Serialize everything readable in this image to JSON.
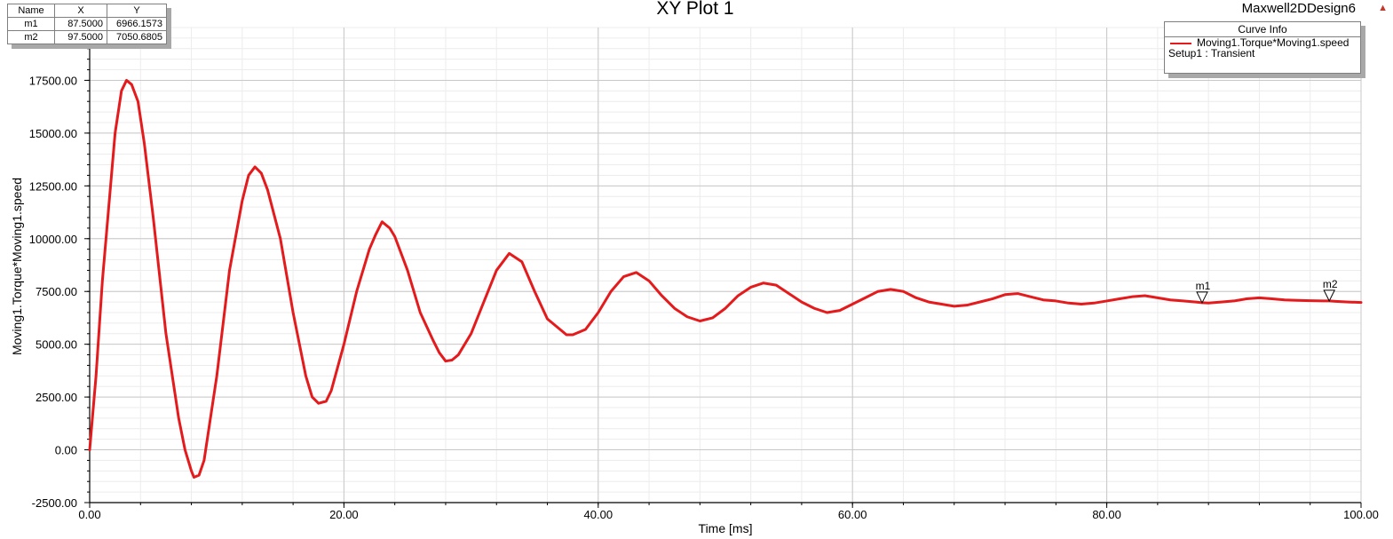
{
  "window": {
    "title": "XY Plot 1",
    "design_name": "Maxwell2DDesign6"
  },
  "marker_table": {
    "headers": [
      "Name",
      "X",
      "Y"
    ],
    "rows": [
      [
        "m1",
        "87.5000",
        "6966.1573"
      ],
      [
        "m2",
        "97.5000",
        "7050.6805"
      ]
    ]
  },
  "legend": {
    "title": "Curve Info",
    "entry": "Moving1.Torque*Moving1.speed",
    "subtitle": "Setup1 : Transient",
    "color": "#e41a1c"
  },
  "chart_data": {
    "type": "line",
    "title": "XY Plot 1",
    "xlabel": "Time [ms]",
    "ylabel": "Moving1.Torque*Moving1.speed",
    "xlim": [
      0,
      100
    ],
    "ylim": [
      -2500,
      20000
    ],
    "x_ticks": [
      "0.00",
      "20.00",
      "40.00",
      "60.00",
      "80.00",
      "100.00"
    ],
    "y_ticks": [
      "-2500.00",
      "0.00",
      "2500.00",
      "5000.00",
      "7500.00",
      "10000.00",
      "12500.00",
      "15000.00",
      "17500.00"
    ],
    "grid": true,
    "legend_position": "top-right",
    "series": [
      {
        "name": "Moving1.Torque*Moving1.speed",
        "color": "#e41a1c",
        "x": [
          0,
          0.5,
          1,
          1.5,
          2,
          2.5,
          2.9,
          3.3,
          3.8,
          4.3,
          5,
          6,
          7,
          7.5,
          8,
          8.2,
          8.6,
          9,
          10,
          11,
          12,
          12.5,
          13,
          13.5,
          14,
          15,
          16,
          17,
          17.5,
          18,
          18.6,
          19,
          20,
          21,
          22,
          22.5,
          23,
          23.6,
          24,
          25,
          26,
          27,
          27.5,
          28,
          28.5,
          29,
          30,
          31,
          32,
          33,
          34,
          35,
          36,
          37,
          37.5,
          38,
          39,
          40,
          41,
          42,
          43,
          44,
          45,
          46,
          47,
          48,
          49,
          50,
          51,
          52,
          53,
          54,
          55,
          56,
          57,
          58,
          59,
          60,
          61,
          62,
          63,
          64,
          65,
          66,
          67,
          68,
          69,
          70,
          71,
          72,
          73,
          74,
          75,
          76,
          77,
          78,
          79,
          80,
          81,
          82,
          83,
          84,
          85,
          86,
          87,
          87.5,
          88,
          89,
          90,
          91,
          92,
          93,
          94,
          95,
          96,
          97,
          97.5,
          98,
          99,
          100
        ],
        "y": [
          0,
          3500,
          8000,
          11500,
          15000,
          17000,
          17500,
          17300,
          16500,
          14500,
          11000,
          5500,
          1500,
          0,
          -1000,
          -1300,
          -1200,
          -500,
          3500,
          8500,
          11800,
          13000,
          13400,
          13100,
          12300,
          10000,
          6500,
          3500,
          2500,
          2200,
          2300,
          2800,
          5000,
          7500,
          9500,
          10200,
          10800,
          10500,
          10100,
          8500,
          6500,
          5200,
          4600,
          4200,
          4250,
          4500,
          5500,
          7000,
          8500,
          9300,
          8900,
          7500,
          6200,
          5700,
          5450,
          5450,
          5700,
          6500,
          7500,
          8200,
          8400,
          8000,
          7300,
          6700,
          6300,
          6100,
          6250,
          6700,
          7300,
          7700,
          7900,
          7800,
          7400,
          7000,
          6700,
          6500,
          6600,
          6900,
          7200,
          7500,
          7600,
          7500,
          7200,
          7000,
          6900,
          6800,
          6850,
          7000,
          7150,
          7350,
          7400,
          7250,
          7100,
          7050,
          6950,
          6900,
          6950,
          7050,
          7150,
          7250,
          7300,
          7200,
          7100,
          7050,
          7000,
          6966,
          6950,
          7000,
          7050,
          7150,
          7200,
          7150,
          7100,
          7080,
          7060,
          7050,
          7051,
          7030,
          7000,
          6980
        ]
      }
    ],
    "markers": [
      {
        "name": "m1",
        "x": 87.5,
        "y": 6966.1573
      },
      {
        "name": "m2",
        "x": 97.5,
        "y": 7050.6805
      }
    ]
  }
}
